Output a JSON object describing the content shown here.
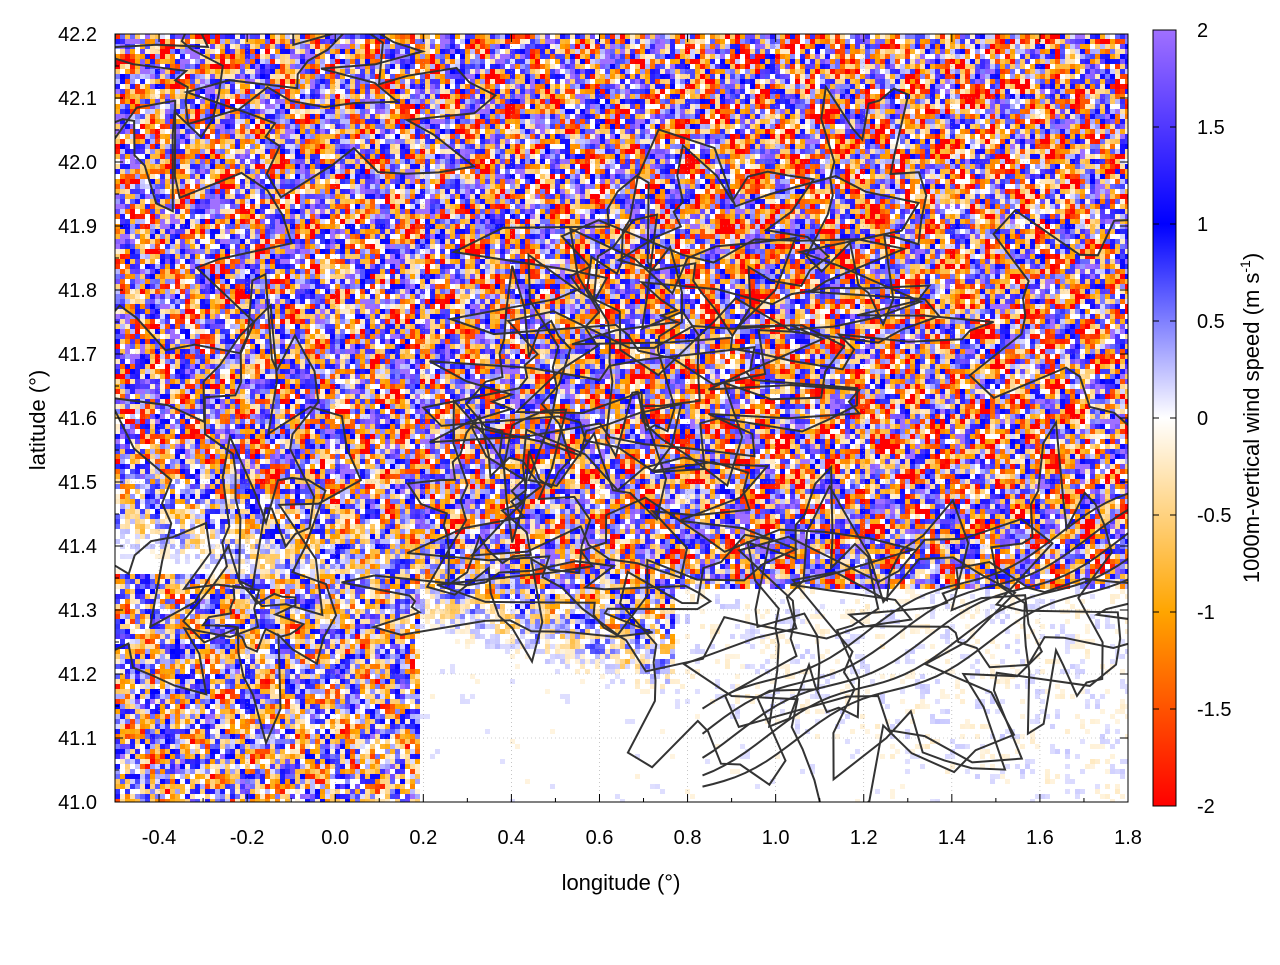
{
  "chart_data": {
    "type": "heatmap",
    "title": "",
    "xlabel": "longitude (°)",
    "ylabel": "latitude (°)",
    "xlim": [
      -0.5,
      1.8
    ],
    "ylim": [
      41.0,
      42.2
    ],
    "x_ticks": [
      -0.4,
      -0.2,
      0.0,
      0.2,
      0.4,
      0.6,
      0.8,
      1.0,
      1.2,
      1.4,
      1.6,
      1.8
    ],
    "x_tick_labels": [
      "-0.4",
      "-0.2",
      "0.0",
      "0.2",
      "0.4",
      "0.6",
      "0.8",
      "1.0",
      "1.2",
      "1.4",
      "1.6",
      "1.8"
    ],
    "y_ticks": [
      41.0,
      41.1,
      41.2,
      41.3,
      41.4,
      41.5,
      41.6,
      41.7,
      41.8,
      41.9,
      42.0,
      42.1,
      42.2
    ],
    "y_tick_labels": [
      "41.0",
      "41.1",
      "41.2",
      "41.3",
      "41.4",
      "41.5",
      "41.6",
      "41.7",
      "41.8",
      "41.9",
      "42.0",
      "42.1",
      "42.2"
    ],
    "grid": true,
    "colorbar": {
      "label": "1000m-vertical wind speed (m s",
      "label_sup": "-1",
      "label_end": ")",
      "range": [
        -2,
        2
      ],
      "ticks": [
        2,
        1.5,
        1,
        0.5,
        0,
        -0.5,
        -1,
        -1.5,
        -2
      ],
      "tick_labels": [
        "2",
        "1.5",
        "1",
        "0.5",
        "0",
        "-0.5",
        "-1",
        "-1.5",
        "-2"
      ],
      "colors": [
        "#ff0000",
        "#ffa500",
        "#ffffff",
        "#0000ff",
        "#a070ff"
      ]
    },
    "contour_color": "#333333",
    "legend": "none"
  }
}
